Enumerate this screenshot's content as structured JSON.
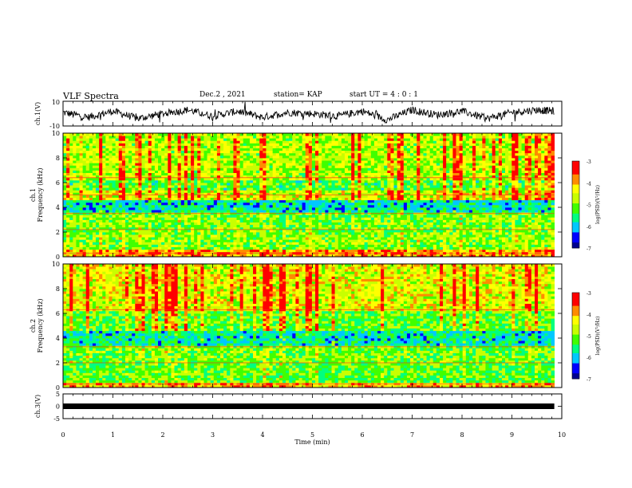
{
  "header": {
    "title": "VLF Spectra",
    "date": "Dec.2 , 2021",
    "station": "station= KAP",
    "start_time": "start UT = 4 : 0 : 1"
  },
  "colors": {
    "trace": "#000000",
    "colormap": [
      "#00008f",
      "#0000ff",
      "#00c8ff",
      "#00ff80",
      "#40ff00",
      "#c8ff00",
      "#ffff00",
      "#ff8c00",
      "#ff0000",
      "#ffffff"
    ]
  },
  "chart_data": [
    {
      "type": "line",
      "panel": "ch1-waveform",
      "ylabel": "ch.1(V)",
      "ylim": [
        -10,
        10
      ],
      "y_tick_labels": [
        "10",
        "-10"
      ],
      "xlim": [
        0,
        10
      ],
      "description_values": "noisy waveform, amplitude mostly between -8 and 8 V",
      "x": [
        0,
        0.5,
        1,
        1.5,
        2,
        2.5,
        3,
        3.5,
        4,
        4.5,
        5,
        5.5,
        6,
        6.5,
        7,
        7.5,
        8,
        8.5,
        9,
        9.5,
        9.85
      ],
      "y": [
        1,
        -3,
        2,
        -4,
        0,
        3,
        -2,
        2,
        -3,
        1,
        0,
        -2,
        2,
        -5,
        3,
        -1,
        2,
        -4,
        1,
        3,
        2
      ]
    },
    {
      "type": "heatmap",
      "panel": "ch1-spectrogram",
      "ylabel": "ch.1 Frequency (kHz)",
      "ylim": [
        0,
        10
      ],
      "y_tick_labels": [
        "0",
        "2",
        "4",
        "6",
        "8",
        "10"
      ],
      "xlim": [
        0,
        9.85
      ],
      "colorbar": {
        "label": "log(PSD)(V²/Hz)",
        "range": [
          -7,
          -3
        ],
        "tick_labels": [
          "-3",
          "-4",
          "-5",
          "-6",
          "-7"
        ]
      },
      "bands_khz": [
        {
          "from": 0,
          "to": 0.7,
          "level": -3.8
        },
        {
          "from": 0.7,
          "to": 2.0,
          "level": -4.8
        },
        {
          "from": 2.0,
          "to": 3.6,
          "level": -4.9
        },
        {
          "from": 3.6,
          "to": 4.6,
          "level": -5.7
        },
        {
          "from": 4.6,
          "to": 5.4,
          "level": -4.4
        },
        {
          "from": 5.4,
          "to": 6.2,
          "level": -5.1
        },
        {
          "from": 6.2,
          "to": 10,
          "level": -4.6
        }
      ],
      "lines_khz": [
        0.3,
        2.2,
        3.5,
        5.0,
        6.4
      ]
    },
    {
      "type": "heatmap",
      "panel": "ch2-spectrogram",
      "ylabel": "ch.2 Frequency (kHz)",
      "ylim": [
        0,
        10
      ],
      "y_tick_labels": [
        "0",
        "2",
        "4",
        "6",
        "8",
        "10"
      ],
      "xlim": [
        0,
        9.85
      ],
      "colorbar": {
        "label": "log(PSD)(V²/Hz)",
        "range": [
          -7,
          -3
        ],
        "tick_labels": [
          "-3",
          "-4",
          "-5",
          "-6",
          "-7"
        ]
      },
      "bands_khz": [
        {
          "from": 0,
          "to": 0.5,
          "level": -3.9
        },
        {
          "from": 0.5,
          "to": 2.0,
          "level": -5.0
        },
        {
          "from": 2.0,
          "to": 3.4,
          "level": -4.9
        },
        {
          "from": 3.4,
          "to": 4.6,
          "level": -5.6
        },
        {
          "from": 4.6,
          "to": 6.2,
          "level": -5.0
        },
        {
          "from": 6.2,
          "to": 10,
          "level": -4.3
        }
      ],
      "lines_khz": [
        0.3,
        2.0,
        3.3,
        6.3
      ]
    },
    {
      "type": "line",
      "panel": "ch3-waveform",
      "ylabel": "ch.3(V)",
      "ylim": [
        -5,
        5
      ],
      "y_tick_labels": [
        "5",
        "0",
        "-5"
      ],
      "xlim": [
        0,
        10
      ],
      "x": [
        0,
        9.85
      ],
      "y": [
        0,
        0
      ]
    }
  ],
  "x_axis": {
    "label": "Time (min)",
    "tick_labels": [
      "0",
      "1",
      "2",
      "3",
      "4",
      "5",
      "6",
      "7",
      "8",
      "9",
      "10"
    ],
    "range": [
      0,
      10
    ]
  }
}
